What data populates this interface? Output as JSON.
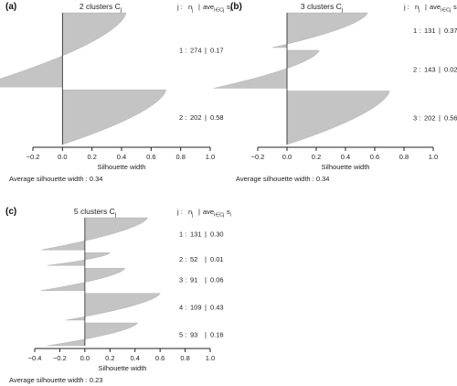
{
  "chart_data": [
    {
      "type": "bar",
      "panel": "(a)",
      "title": "2 clusters",
      "title_sub": "C",
      "title_sub_index": "j",
      "header": {
        "j": "j :",
        "nj": "n",
        "nj_sub": "j",
        "sep": "|",
        "ave": "ave",
        "ave_sub": "i∈Cj",
        "si": "s",
        "si_sub": "i"
      },
      "clusters": [
        {
          "label": "1 :",
          "n_label": "274",
          "sep": "|",
          "avg_label": "0.17",
          "n": 274,
          "avg": 0.17,
          "max": 0.43,
          "min": -0.6
        },
        {
          "label": "2 :",
          "n_label": "202",
          "sep": "|",
          "avg_label": "0.58",
          "n": 202,
          "avg": 0.58,
          "max": 0.7,
          "min": 0.0
        }
      ],
      "xlim": [
        -0.2,
        1.0
      ],
      "xticks": [
        "−0.2",
        "0.0",
        "0.2",
        "0.4",
        "0.6",
        "0.8",
        "1.0"
      ],
      "xtick_values": [
        -0.2,
        0.0,
        0.2,
        0.4,
        0.6,
        0.8,
        1.0
      ],
      "xlabel": "Silhouette width",
      "footer": "Average silhouette width :  0.34"
    },
    {
      "type": "bar",
      "panel": "(b)",
      "title": "3 clusters",
      "title_sub": "C",
      "title_sub_index": "j",
      "header": {
        "j": "j :",
        "nj": "n",
        "nj_sub": "j",
        "sep": "|",
        "ave": "ave",
        "ave_sub": "i∈Cj",
        "si": "s",
        "si_sub": "i"
      },
      "clusters": [
        {
          "label": "1 :",
          "n_label": "131",
          "sep": "|",
          "avg_label": "0.37",
          "n": 131,
          "avg": 0.37,
          "max": 0.55,
          "min": -0.1
        },
        {
          "label": "2 :",
          "n_label": "143",
          "sep": "|",
          "avg_label": "0.02",
          "n": 143,
          "avg": 0.02,
          "max": 0.22,
          "min": -0.5
        },
        {
          "label": "3 :",
          "n_label": "202",
          "sep": "|",
          "avg_label": "0.56",
          "n": 202,
          "avg": 0.56,
          "max": 0.7,
          "min": 0.0
        }
      ],
      "xlim": [
        -0.2,
        1.0
      ],
      "xticks": [
        "−0.2",
        "0.0",
        "0.2",
        "0.4",
        "0.6",
        "0.8",
        "1.0"
      ],
      "xtick_values": [
        -0.2,
        0.0,
        0.2,
        0.4,
        0.6,
        0.8,
        1.0
      ],
      "xlabel": "Silhouette width",
      "footer": "Average silhouette width :  0.34"
    },
    {
      "type": "bar",
      "panel": "(c)",
      "title": "5 clusters",
      "title_sub": "C",
      "title_sub_index": "j",
      "header": {
        "j": "j :",
        "nj": "n",
        "nj_sub": "j",
        "sep": "|",
        "ave": "ave",
        "ave_sub": "i∈Cj",
        "si": "s",
        "si_sub": "i"
      },
      "clusters": [
        {
          "label": "1 :",
          "n_label": "131",
          "sep": "|",
          "avg_label": "0.30",
          "n": 131,
          "avg": 0.3,
          "max": 0.5,
          "min": -0.35
        },
        {
          "label": "2 :",
          "n_label": "52",
          "sep": "|",
          "avg_label": "0.01",
          "n": 52,
          "avg": 0.01,
          "max": 0.2,
          "min": -0.3
        },
        {
          "label": "3 :",
          "n_label": "91",
          "sep": "|",
          "avg_label": "0.06",
          "n": 91,
          "avg": 0.06,
          "max": 0.32,
          "min": -0.35
        },
        {
          "label": "4 :",
          "n_label": "109",
          "sep": "|",
          "avg_label": "0.43",
          "n": 109,
          "avg": 0.43,
          "max": 0.6,
          "min": -0.15
        },
        {
          "label": "5 :",
          "n_label": "93",
          "sep": "|",
          "avg_label": "0.16",
          "n": 93,
          "avg": 0.16,
          "max": 0.42,
          "min": -0.3
        }
      ],
      "xlim": [
        -0.4,
        1.0
      ],
      "xticks": [
        "−0.4",
        "−0.2",
        "0.0",
        "0.2",
        "0.4",
        "0.6",
        "0.8",
        "1.0"
      ],
      "xtick_values": [
        -0.4,
        -0.2,
        0.0,
        0.2,
        0.4,
        0.6,
        0.8,
        1.0
      ],
      "xlabel": "Silhouette width",
      "footer": "Average silhouette width :  0.23"
    }
  ]
}
